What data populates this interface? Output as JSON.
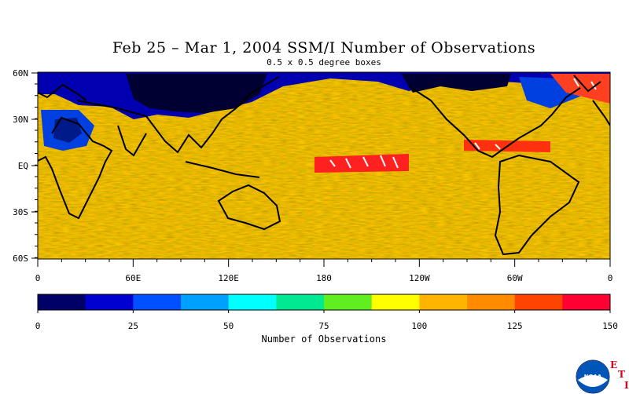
{
  "title": "Feb 25 – Mar 1, 2004 SSM/I Number of Observations",
  "subtitle": "0.5 x 0.5 degree boxes",
  "map": {
    "lat_labels": [
      "60N",
      "30N",
      "EQ",
      "30S",
      "60S"
    ],
    "lon_labels": [
      "0",
      "60E",
      "120E",
      "180",
      "120W",
      "60W",
      "0"
    ]
  },
  "colorbar": {
    "title": "Number of Observations",
    "tick_labels": [
      "0",
      "25",
      "50",
      "75",
      "100",
      "125",
      "150"
    ],
    "colors": [
      "#000066",
      "#0000d0",
      "#0050ff",
      "#00a0ff",
      "#00ffff",
      "#00e890",
      "#60ee20",
      "#ffff00",
      "#ffb400",
      "#ff8c00",
      "#ff4400",
      "#ff0033"
    ]
  },
  "logos": {
    "noaa_text": "NOAA",
    "eti_letters": [
      "E",
      "T",
      "I"
    ]
  }
}
